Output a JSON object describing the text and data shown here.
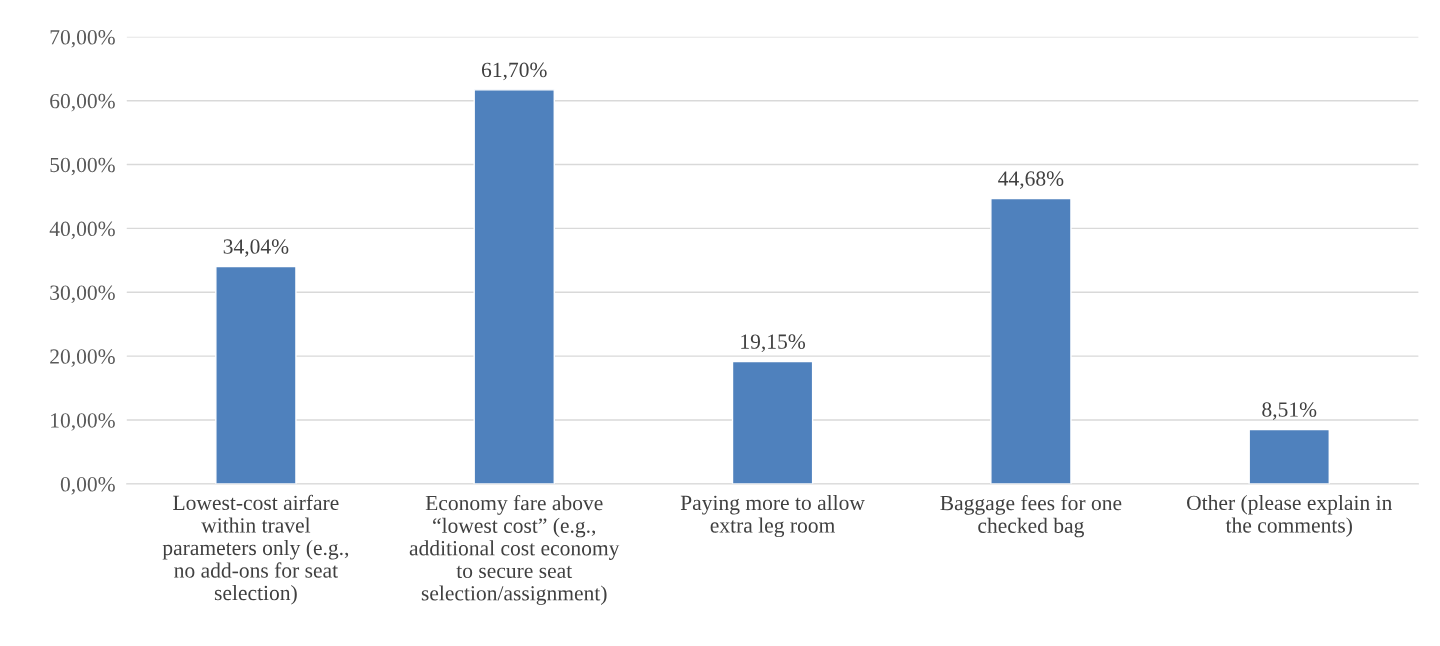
{
  "chart_data": {
    "type": "bar",
    "categories": [
      "Lowest-cost airfare\nwithin travel\nparameters only (e.g.,\nno add-ons for seat\nselection)",
      "Economy fare above\n“lowest cost” (e.g.,\nadditional cost economy\nto secure seat\nselection/assignment)",
      "Paying more to allow\nextra leg room",
      "Baggage fees for one\nchecked bag",
      "Other (please explain in\nthe comments)"
    ],
    "values": [
      34.04,
      61.7,
      19.15,
      44.68,
      8.51
    ],
    "value_labels": [
      "34,04%",
      "61,70%",
      "19,15%",
      "44,68%",
      "8,51%"
    ],
    "color": "#4f81bd",
    "ylim": [
      0,
      70
    ],
    "yticks": [
      {
        "value": 0,
        "label": "0,00%"
      },
      {
        "value": 10,
        "label": "10,00%"
      },
      {
        "value": 20,
        "label": "20,00%"
      },
      {
        "value": 30,
        "label": "30,00%"
      },
      {
        "value": 40,
        "label": "40,00%"
      },
      {
        "value": 50,
        "label": "50,00%"
      },
      {
        "value": 60,
        "label": "60,00%"
      },
      {
        "value": 70,
        "label": "70,00%"
      }
    ],
    "grid": "y"
  }
}
